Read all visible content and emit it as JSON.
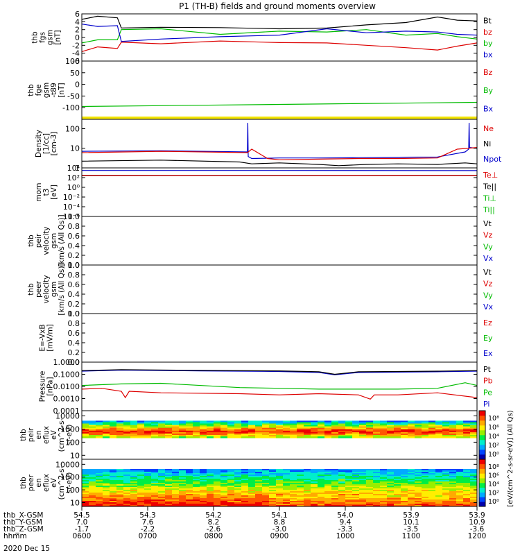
{
  "chart_data": {
    "type": "line",
    "title": "P1 (TH-B) fields and ground moments overview",
    "panels": [
      {
        "id": "fgs",
        "ylabel": [
          "thb",
          "fgs",
          "gsm",
          "[nT]"
        ],
        "ylim": [
          -6,
          6
        ],
        "yticks": [
          "6",
          "4",
          "2",
          "0",
          "-2",
          "-4",
          "-6"
        ],
        "tickvals": [
          6,
          4,
          2,
          0,
          -2,
          -4,
          -6
        ],
        "legend": [
          {
            "label": "Bt",
            "color": "#000000"
          },
          {
            "label": "bz",
            "color": "#dd0000"
          },
          {
            "label": "by",
            "color": "#00bb00"
          },
          {
            "label": "bx",
            "color": "#0000cc"
          }
        ],
        "series": [
          {
            "name": "Bt",
            "color": "#000000",
            "x": [
              0,
              0.04,
              0.09,
              0.1,
              0.2,
              0.35,
              0.5,
              0.62,
              0.72,
              0.82,
              0.9,
              0.95,
              1
            ],
            "y": [
              4.6,
              5.4,
              5.0,
              2.4,
              2.6,
              2.5,
              2.2,
              2.4,
              3.2,
              3.8,
              5.2,
              4.4,
              4.2
            ]
          },
          {
            "name": "bz",
            "color": "#dd0000",
            "x": [
              0,
              0.04,
              0.09,
              0.1,
              0.2,
              0.35,
              0.5,
              0.62,
              0.72,
              0.82,
              0.9,
              0.95,
              1
            ],
            "y": [
              -3.6,
              -2.4,
              -2.8,
              -1.2,
              -1.6,
              -0.9,
              -1.3,
              -1.4,
              -2.0,
              -2.6,
              -3.2,
              -2.2,
              -1.4
            ]
          },
          {
            "name": "by",
            "color": "#00bb00",
            "x": [
              0,
              0.04,
              0.09,
              0.1,
              0.2,
              0.35,
              0.5,
              0.62,
              0.72,
              0.82,
              0.9,
              0.95,
              1
            ],
            "y": [
              -1.4,
              -0.6,
              -0.6,
              2.0,
              2.2,
              0.8,
              1.6,
              1.4,
              2.0,
              0.6,
              1.0,
              0.2,
              -0.4
            ]
          },
          {
            "name": "bx",
            "color": "#0000cc",
            "x": [
              0,
              0.04,
              0.09,
              0.1,
              0.2,
              0.35,
              0.5,
              0.62,
              0.72,
              0.82,
              0.9,
              0.95,
              1
            ],
            "y": [
              3.4,
              2.8,
              3.0,
              -1.0,
              -0.4,
              0.2,
              0.6,
              2.2,
              1.2,
              1.6,
              1.4,
              0.8,
              0.6
            ]
          }
        ]
      },
      {
        "id": "fge",
        "ylabel": [
          "thb",
          "fge",
          "gsm",
          "-t89",
          "[nT]"
        ],
        "ylim": [
          -150,
          100
        ],
        "yticks": [
          "100",
          "50",
          "0",
          "-50",
          "-100"
        ],
        "tickvals": [
          100,
          50,
          0,
          -50,
          -100
        ],
        "legend": [
          {
            "label": "Bz",
            "color": "#dd0000"
          },
          {
            "label": "By",
            "color": "#00bb00"
          },
          {
            "label": "Bx",
            "color": "#0000cc"
          }
        ],
        "series": [
          {
            "name": "By",
            "color": "#00bb00",
            "x": [
              0,
              0.5,
              1
            ],
            "y": [
              -95,
              -86,
              -77
            ]
          }
        ],
        "band": {
          "color": "#f2e400",
          "ymin": -148,
          "ymax": -138
        }
      },
      {
        "id": "density",
        "ylabel": [
          "Density",
          "[1/cc]",
          "[cm-3]"
        ],
        "log": true,
        "ylim": [
          1,
          300
        ],
        "yticks": [
          "100",
          "10",
          "1"
        ],
        "tickvals": [
          100,
          10,
          1
        ],
        "legend": [
          {
            "label": "Ne",
            "color": "#dd0000"
          },
          {
            "label": "Ni",
            "color": "#000000"
          },
          {
            "label": "Npot",
            "color": "#0000cc"
          }
        ],
        "series": [
          {
            "name": "Ni",
            "color": "#000000",
            "x": [
              0,
              0.2,
              0.4,
              0.43,
              0.5,
              0.6,
              0.65,
              0.72,
              0.8,
              0.9,
              0.97,
              1
            ],
            "y": [
              2.2,
              2.5,
              2.0,
              1.6,
              1.8,
              1.5,
              1.3,
              1.5,
              1.6,
              1.5,
              1.8,
              1.6
            ]
          },
          {
            "name": "Npot",
            "color": "#0000cc",
            "x": [
              0,
              0.2,
              0.419,
              0.42,
              0.421,
              0.43,
              0.5,
              0.6,
              0.7,
              0.8,
              0.9,
              0.97,
              0.979,
              0.98,
              0.981,
              1
            ],
            "y": [
              7,
              7.5,
              6.5,
              200,
              3.8,
              3.0,
              3.2,
              3.2,
              3.3,
              3.5,
              3.6,
              6.5,
              9,
              200,
              11,
              10
            ]
          },
          {
            "name": "Ne",
            "color": "#dd0000",
            "x": [
              0,
              0.2,
              0.419,
              0.43,
              0.47,
              0.5,
              0.6,
              0.7,
              0.8,
              0.9,
              0.95,
              1
            ],
            "y": [
              6,
              7,
              6,
              9,
              3.0,
              2.6,
              2.8,
              3.0,
              3.0,
              3.2,
              9,
              11
            ]
          }
        ]
      },
      {
        "id": "temp",
        "ylabel": [
          "mom",
          "t3",
          "[eV]"
        ],
        "log": true,
        "ylim": [
          1e-06,
          10000
        ],
        "yticks": [
          "10⁴",
          "10²",
          "10⁰",
          "10⁻²",
          "10⁻⁴",
          "10⁻⁶"
        ],
        "tickvals": [
          10000,
          100,
          1,
          0.01,
          0.0001,
          1e-06
        ],
        "legend": [
          {
            "label": "Te⊥",
            "color": "#dd0000"
          },
          {
            "label": "Te||",
            "color": "#000000"
          },
          {
            "label": "Ti⊥",
            "color": "#00bb00"
          },
          {
            "label": "Ti||",
            "color": "#00bb00"
          }
        ],
        "series": [
          {
            "name": "Ti||",
            "color": "#0000cc",
            "x": [
              0,
              0.5,
              1
            ],
            "y": [
              3000,
              3000,
              2800
            ]
          },
          {
            "name": "Te||",
            "color": "#000000",
            "x": [
              0,
              0.5,
              1
            ],
            "y": [
              300,
              280,
              300
            ]
          },
          {
            "name": "Te⊥",
            "color": "#dd0000",
            "x": [
              0,
              0.5,
              1
            ],
            "y": [
              260,
              250,
              270
            ]
          }
        ]
      },
      {
        "id": "peir_vel",
        "ylabel": [
          "thb",
          "peir",
          "velocity",
          "gsm",
          "[km/s (All Qs)]"
        ],
        "ylim": [
          0,
          1
        ],
        "yticks": [
          "1.0",
          "0.8",
          "0.6",
          "0.4",
          "0.2",
          "0.0"
        ],
        "tickvals": [
          1,
          0.8,
          0.6,
          0.4,
          0.2,
          0
        ],
        "legend": [
          {
            "label": "Vt",
            "color": "#000000"
          },
          {
            "label": "Vz",
            "color": "#dd0000"
          },
          {
            "label": "Vy",
            "color": "#00bb00"
          },
          {
            "label": "Vx",
            "color": "#0000cc"
          }
        ],
        "series": []
      },
      {
        "id": "peer_vel",
        "ylabel": [
          "thb",
          "peer",
          "velocity",
          "gsm",
          "[km/s (All Qs)]"
        ],
        "ylim": [
          0,
          1
        ],
        "yticks": [
          "1.0",
          "0.8",
          "0.6",
          "0.4",
          "0.2",
          "0.0"
        ],
        "tickvals": [
          1,
          0.8,
          0.6,
          0.4,
          0.2,
          0
        ],
        "legend": [
          {
            "label": "Vt",
            "color": "#000000"
          },
          {
            "label": "Vz",
            "color": "#dd0000"
          },
          {
            "label": "Vy",
            "color": "#00bb00"
          },
          {
            "label": "Vx",
            "color": "#0000cc"
          }
        ],
        "series": []
      },
      {
        "id": "efield",
        "ylabel": [
          "E=-VxB",
          "[mV/m]"
        ],
        "ylim": [
          0,
          1
        ],
        "yticks": [
          "1.0",
          "0.8",
          "0.6",
          "0.4",
          "0.2",
          "0.0"
        ],
        "tickvals": [
          1,
          0.8,
          0.6,
          0.4,
          0.2,
          0
        ],
        "legend": [
          {
            "label": "Ez",
            "color": "#dd0000"
          },
          {
            "label": "Ey",
            "color": "#00bb00"
          },
          {
            "label": "Ex",
            "color": "#0000cc"
          }
        ],
        "series": []
      },
      {
        "id": "pressure",
        "ylabel": [
          "Pressure",
          "[nPa]"
        ],
        "log": true,
        "ylim": [
          0.0001,
          1
        ],
        "yticks": [
          "1.0000",
          "0.1000",
          "0.0100",
          "0.0010",
          "0.0001"
        ],
        "tickvals": [
          1,
          0.1,
          0.01,
          0.001,
          0.0001
        ],
        "legend": [
          {
            "label": "Pt",
            "color": "#000000"
          },
          {
            "label": "Pb",
            "color": "#dd0000"
          },
          {
            "label": "Pe",
            "color": "#00bb00"
          },
          {
            "label": "Pi",
            "color": "#0000cc"
          }
        ],
        "series": [
          {
            "name": "Pi",
            "color": "#0000cc",
            "x": [
              0,
              0.1,
              0.3,
              0.5,
              0.6,
              0.64,
              0.7,
              0.8,
              0.9,
              1
            ],
            "y": [
              0.18,
              0.22,
              0.19,
              0.17,
              0.14,
              0.09,
              0.14,
              0.15,
              0.16,
              0.18
            ]
          },
          {
            "name": "Pt",
            "color": "#000000",
            "x": [
              0,
              0.1,
              0.3,
              0.5,
              0.6,
              0.64,
              0.7,
              0.8,
              0.9,
              1
            ],
            "y": [
              0.2,
              0.24,
              0.21,
              0.19,
              0.16,
              0.1,
              0.16,
              0.17,
              0.18,
              0.2
            ]
          },
          {
            "name": "Pe",
            "color": "#00bb00",
            "x": [
              0,
              0.1,
              0.2,
              0.4,
              0.5,
              0.6,
              0.7,
              0.8,
              0.9,
              0.97,
              1
            ],
            "y": [
              0.012,
              0.016,
              0.018,
              0.008,
              0.007,
              0.006,
              0.006,
              0.006,
              0.007,
              0.02,
              0.012
            ]
          },
          {
            "name": "Pb",
            "color": "#dd0000",
            "x": [
              0,
              0.05,
              0.1,
              0.11,
              0.12,
              0.2,
              0.4,
              0.5,
              0.6,
              0.7,
              0.73,
              0.74,
              0.8,
              0.9,
              1
            ],
            "y": [
              0.006,
              0.007,
              0.004,
              0.0012,
              0.004,
              0.003,
              0.0025,
              0.002,
              0.0025,
              0.002,
              0.0009,
              0.002,
              0.002,
              0.003,
              0.0012
            ]
          }
        ]
      },
      {
        "id": "peir_spec",
        "ylabel": [
          "thb",
          "peir",
          "en",
          "eflux",
          "eV",
          "(cm^2-s-",
          "sr-eV)"
        ],
        "spectrogram": true,
        "log": true,
        "ylim": [
          5,
          25000
        ],
        "yticks": [
          "10000",
          "1000",
          "100",
          "10"
        ],
        "tickvals": [
          10000,
          1000,
          100,
          10
        ],
        "ranges_ev": [
          [
            200,
            4000
          ]
        ],
        "legend": []
      },
      {
        "id": "peer_spec",
        "ylabel": [
          "thb",
          "peer",
          "en",
          "eflux",
          "eV",
          "(cm^2-s-",
          "sr-eV)"
        ],
        "spectrogram": true,
        "log": true,
        "ylim": [
          5,
          25000
        ],
        "yticks": [
          "10000",
          "1000",
          "100",
          "10"
        ],
        "tickvals": [
          10000,
          1000,
          100,
          10
        ],
        "ranges_ev": [
          [
            5,
            4000
          ]
        ],
        "legend": []
      }
    ],
    "colorbar": {
      "label": "[eV/(cm^2-s-sr-eV)] (All Qs)",
      "ticks_upper": [
        "10⁸",
        "10⁶",
        "10⁴",
        "10²",
        "10⁰"
      ],
      "ticks_lower": [
        "10⁸",
        "10⁶",
        "10⁴",
        "10²",
        "10⁰"
      ]
    },
    "x_axis": {
      "rows": [
        {
          "label": "thb_X-GSM",
          "values": [
            "54.5",
            "54.3",
            "54.2",
            "54.1",
            "54.0",
            "53.9",
            "53.9"
          ]
        },
        {
          "label": "thb_Y-GSM",
          "values": [
            "7.0",
            "7.6",
            "8.2",
            "8.8",
            "9.4",
            "10.1",
            "10.9"
          ]
        },
        {
          "label": "thb_Z-GSM",
          "values": [
            "-1.7",
            "-2.2",
            "-2.6",
            "-3.0",
            "-3.3",
            "-3.5",
            "-3.6"
          ]
        },
        {
          "label": "hhmm",
          "values": [
            "0600",
            "0700",
            "0800",
            "0900",
            "1000",
            "1100",
            "1200"
          ]
        }
      ],
      "date": "2020 Dec 15"
    }
  }
}
